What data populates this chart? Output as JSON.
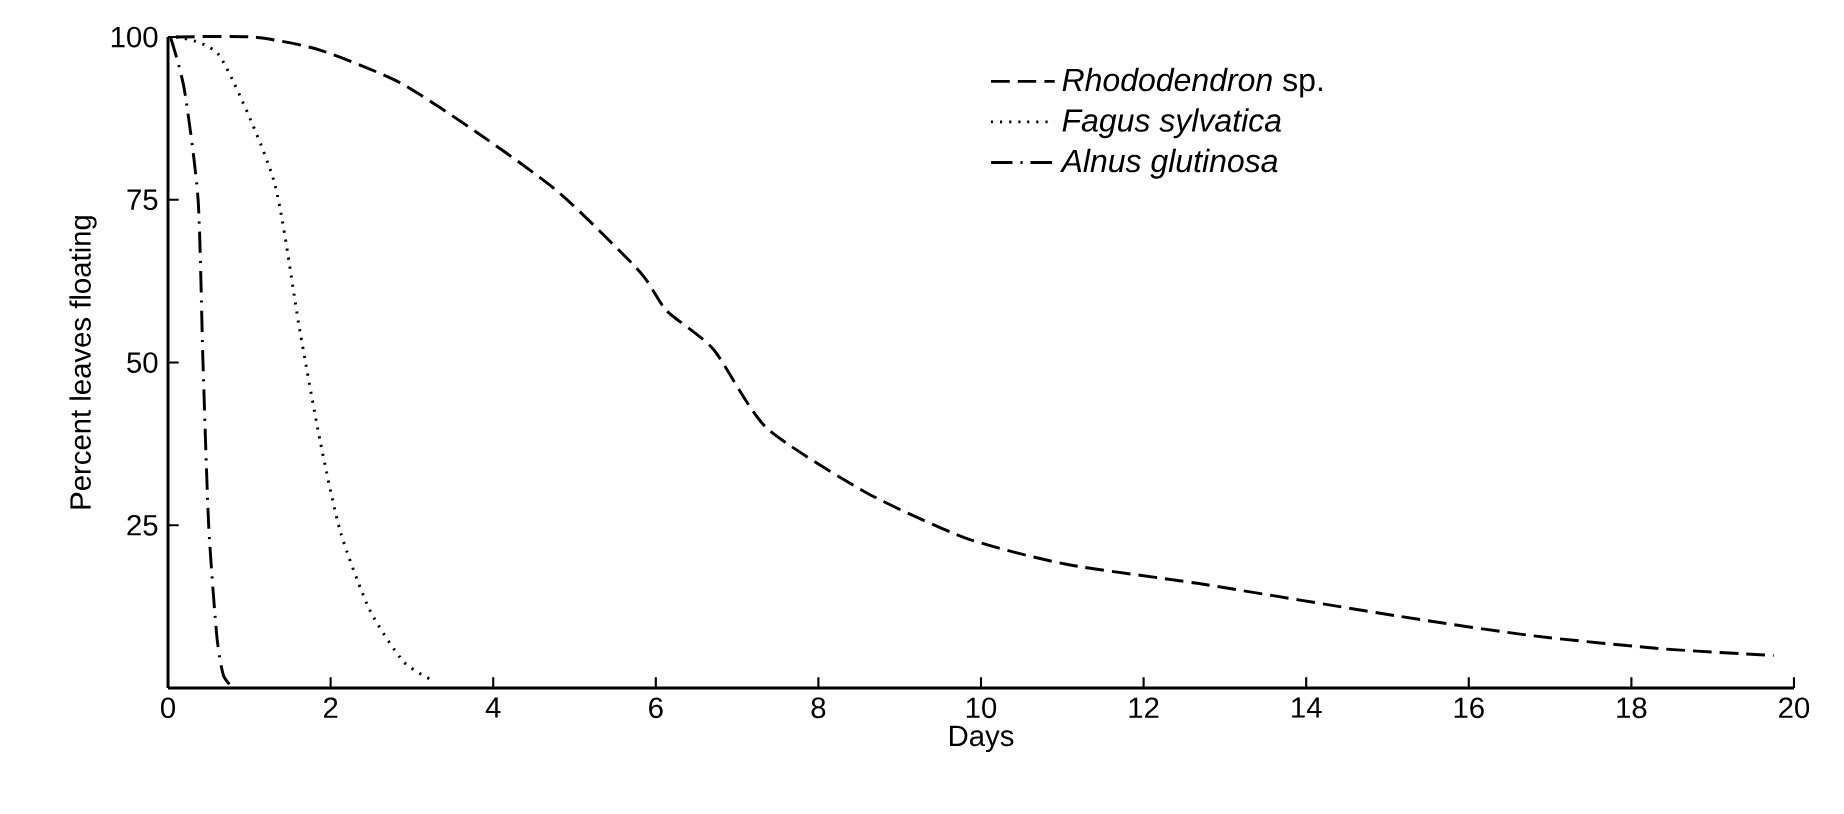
{
  "chart_data": {
    "type": "line",
    "xlabel": "Days",
    "ylabel": "Percent leaves floating",
    "xlim": [
      0,
      20
    ],
    "ylim": [
      0,
      100
    ],
    "xticks": [
      0,
      2,
      4,
      6,
      8,
      10,
      12,
      14,
      16,
      18,
      20
    ],
    "yticks": [
      25,
      50,
      75,
      100
    ],
    "legend": "top right",
    "marker": "none",
    "series": [
      {
        "name": "*Rhododendron* sp.",
        "color": "#000000",
        "line_style": "dashed",
        "x": [
          0.1,
          1.05,
          1.87,
          2.85,
          3.84,
          4.82,
          5.8,
          6.13,
          6.71,
          7.36,
          8.59,
          9.82,
          11.05,
          12.7,
          15.15,
          16.8,
          18.4,
          19.75
        ],
        "values": [
          100,
          100,
          98,
          93,
          85,
          76,
          64,
          58,
          52,
          40,
          30,
          23,
          19,
          16,
          11,
          8,
          6,
          5
        ]
      },
      {
        "name": "*Fagus sylvatica*",
        "color": "#000000",
        "line_style": "dotted",
        "x": [
          0.1,
          0.64,
          1.3,
          1.62,
          1.87,
          2.12,
          2.48,
          2.9,
          3.28
        ],
        "values": [
          100,
          97,
          78,
          55,
          38,
          24,
          12,
          4,
          1
        ]
      },
      {
        "name": "*Alnus glutinosa*",
        "color": "#000000",
        "line_style": "dashdot",
        "x": [
          0.03,
          0.2,
          0.37,
          0.43,
          0.5,
          0.6,
          0.68,
          0.8
        ],
        "values": [
          100,
          92,
          75,
          50,
          25,
          8,
          2,
          0
        ]
      }
    ]
  }
}
